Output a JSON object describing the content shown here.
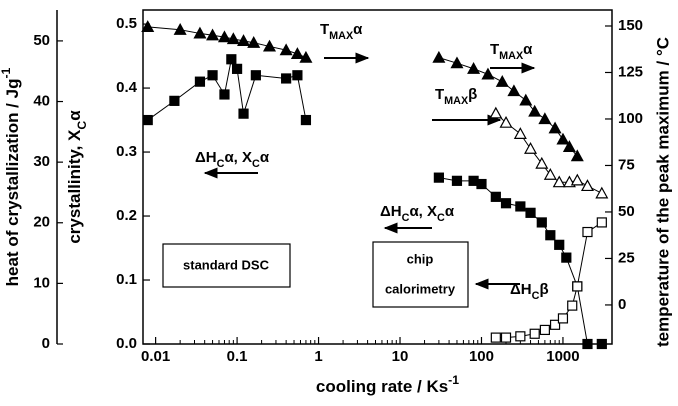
{
  "chart_data": {
    "type": "scatter",
    "x_log": true,
    "xlim": [
      0.007,
      4000
    ],
    "xticks": [
      0.01,
      0.1,
      1,
      10,
      100,
      1000
    ],
    "xlabel": [
      "cooling rate / Ks",
      "-1"
    ],
    "ylim": [
      0,
      0.522
    ],
    "yticks": [
      {
        "value": 0,
        "label": "0.0"
      },
      0.1,
      0.2,
      0.3,
      0.4,
      0.5
    ],
    "ylabel": [
      "crystallinity, X",
      "C",
      "α"
    ],
    "y2lim": [
      -21,
      158.6
    ],
    "y2ticks": [
      0,
      25,
      50,
      75,
      100,
      125,
      150
    ],
    "y2label": "temperature of the peak maximum / °C",
    "y3lim": [
      0,
      55.1
    ],
    "y3ticks": [
      0,
      10,
      20,
      30,
      40,
      50
    ],
    "y3label": [
      "heat of crystallization / Jg",
      "-1"
    ],
    "series": [
      {
        "marker": "triangle",
        "filled": true,
        "color": "#000000",
        "axis": "y2",
        "x": [
          0.008,
          0.02,
          0.035,
          0.05,
          0.07,
          0.09,
          0.12,
          0.16,
          0.25,
          0.4,
          0.55,
          0.7
        ],
        "values": [
          149.5,
          148,
          146,
          145,
          144,
          143,
          142,
          141,
          139,
          137,
          135,
          133
        ]
      },
      {
        "marker": "square",
        "filled": true,
        "color": "#000000",
        "axis": "y",
        "x": [
          0.008,
          0.017,
          0.035,
          0.05,
          0.07,
          0.085,
          0.1,
          0.12,
          0.17,
          0.4,
          0.55,
          0.7
        ],
        "values": [
          0.35,
          0.38,
          0.41,
          0.42,
          0.39,
          0.445,
          0.43,
          0.36,
          0.42,
          0.415,
          0.42,
          0.35
        ]
      },
      {
        "marker": "triangle",
        "filled": true,
        "color": "#000000",
        "axis": "y2",
        "x": [
          30,
          50,
          80,
          120,
          180,
          250,
          350,
          450,
          600,
          800,
          1000,
          1200,
          1500
        ],
        "values": [
          133,
          130,
          127,
          124,
          120,
          115,
          110,
          104,
          100,
          95,
          89,
          85,
          80
        ]
      },
      {
        "marker": "triangle",
        "filled": false,
        "color": "#000000",
        "axis": "y2",
        "x": [
          150,
          200,
          300,
          400,
          550,
          700,
          900,
          1200,
          1500,
          2000,
          3000
        ],
        "values": [
          103,
          98,
          92,
          84,
          76,
          70,
          66,
          66,
          67,
          64,
          60
        ]
      },
      {
        "marker": "square",
        "filled": true,
        "color": "#000000",
        "axis": "y",
        "x": [
          30,
          50,
          80,
          100,
          150,
          200,
          300,
          400,
          550,
          700,
          900,
          1100,
          1500,
          2000,
          3000
        ],
        "values": [
          0.26,
          0.255,
          0.255,
          0.25,
          0.23,
          0.22,
          0.215,
          0.205,
          0.19,
          0.17,
          0.155,
          0.135,
          0.09,
          0.0,
          0.0
        ]
      },
      {
        "marker": "square",
        "filled": false,
        "color": "#000000",
        "axis": "y",
        "x": [
          150,
          200,
          300,
          450,
          600,
          800,
          1000,
          1300,
          1500,
          2000,
          3000
        ],
        "values": [
          0.01,
          0.01,
          0.012,
          0.016,
          0.022,
          0.03,
          0.04,
          0.06,
          0.09,
          0.175,
          0.19
        ]
      }
    ],
    "annotations": [
      [
        "T",
        "MAX",
        "α"
      ],
      [
        "T",
        "MAX",
        "α"
      ],
      [
        "T",
        "MAX",
        "β"
      ],
      [
        "ΔH",
        "C",
        "α, X",
        "C",
        "α"
      ],
      [
        "ΔH",
        "C",
        "α, X",
        "C",
        "α"
      ],
      [
        "ΔH",
        "C",
        "β"
      ]
    ],
    "boxes": [
      [
        "standard DSC"
      ],
      [
        "chip",
        "calorimetry"
      ]
    ]
  }
}
